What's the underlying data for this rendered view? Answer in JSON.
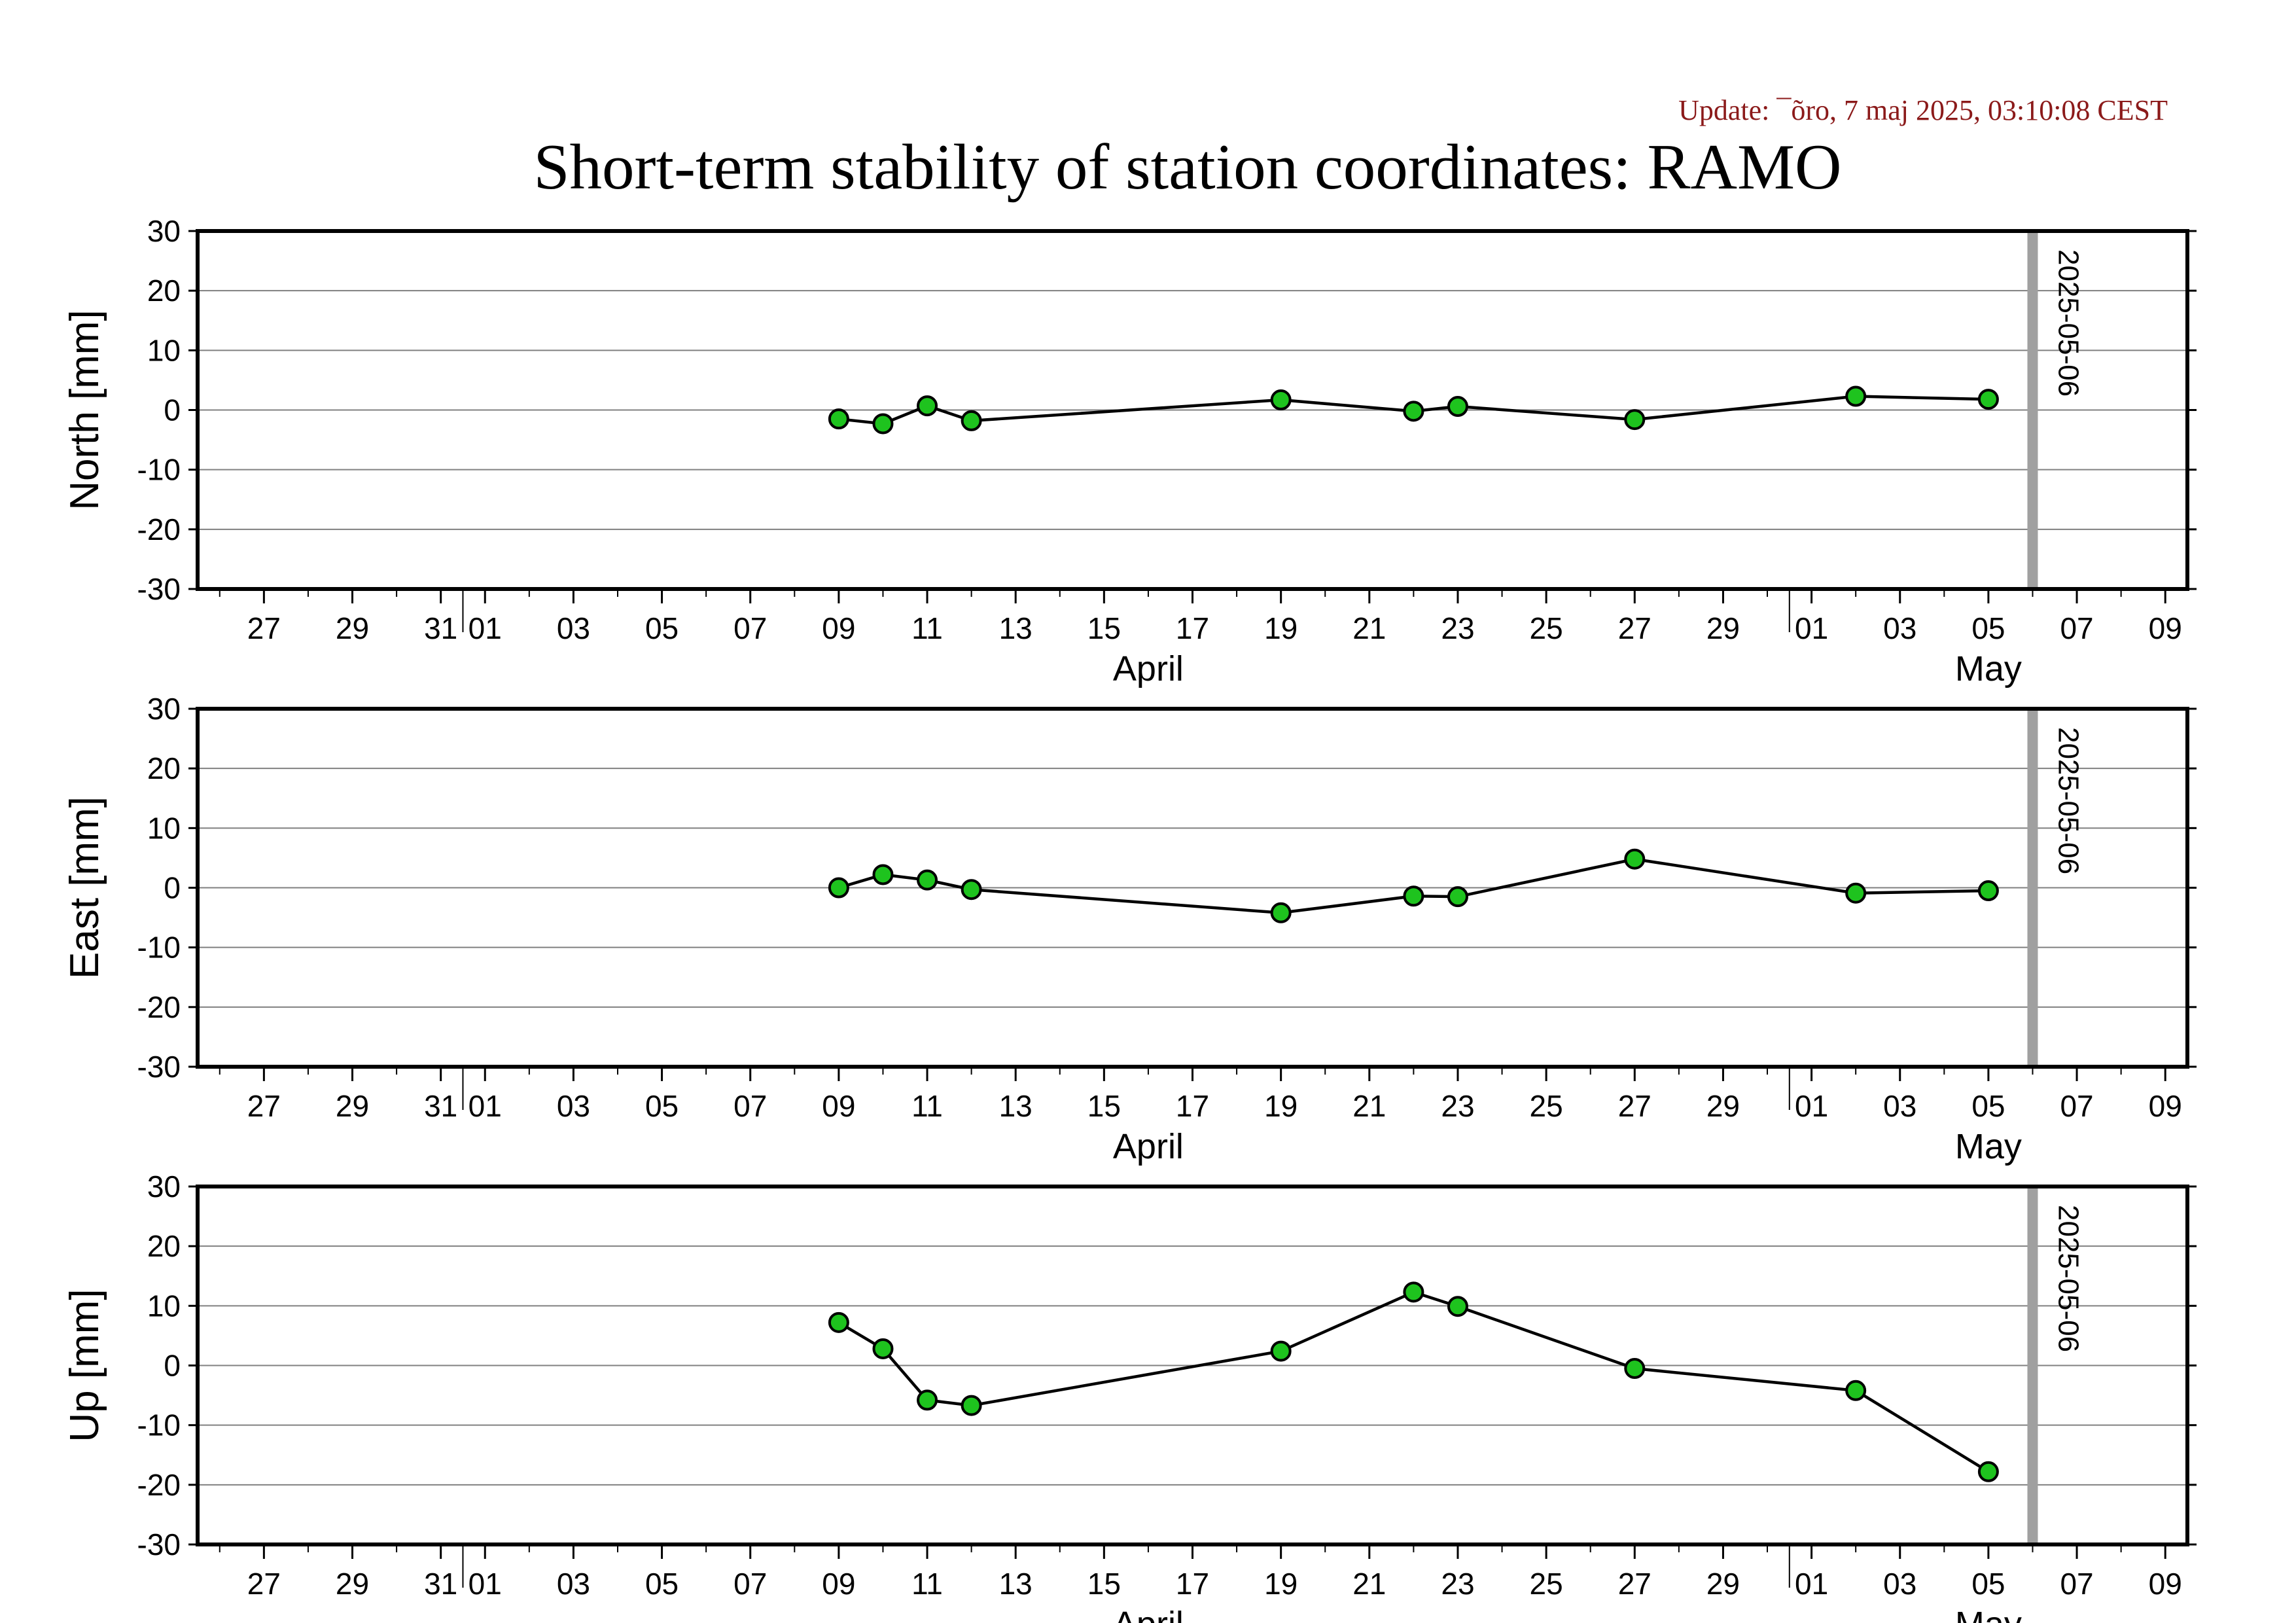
{
  "update_text": "Update: ¯õro, 7 maj 2025, 03:10:08 CEST",
  "title": "Short-term stability of station coordinates: RAMO",
  "colors": {
    "update_text": "#8b1a1a",
    "marker_fill": "#1ec31e",
    "marker_stroke": "#000000",
    "line": "#000000",
    "grid": "#808080",
    "marker_line": "#a0a0a0"
  },
  "chart_data": [
    {
      "type": "line",
      "ylabel": "North [mm]",
      "ylim": [
        -30,
        30
      ],
      "yticks": [
        30,
        20,
        10,
        0,
        -10,
        -20,
        -30
      ],
      "grid": "horizontal",
      "x": [
        "2025-04-09",
        "2025-04-10",
        "2025-04-11",
        "2025-04-12",
        "2025-04-19",
        "2025-04-22",
        "2025-04-23",
        "2025-04-27",
        "2025-05-02",
        "2025-05-05"
      ],
      "values": [
        -1.5,
        -2.3,
        0.7,
        -1.8,
        1.7,
        -0.2,
        0.6,
        -1.6,
        2.3,
        1.8
      ]
    },
    {
      "type": "line",
      "ylabel": "East [mm]",
      "ylim": [
        -30,
        30
      ],
      "yticks": [
        30,
        20,
        10,
        0,
        -10,
        -20,
        -30
      ],
      "grid": "horizontal",
      "x": [
        "2025-04-09",
        "2025-04-10",
        "2025-04-11",
        "2025-04-12",
        "2025-04-19",
        "2025-04-22",
        "2025-04-23",
        "2025-04-27",
        "2025-05-02",
        "2025-05-05"
      ],
      "values": [
        0.0,
        2.2,
        1.3,
        -0.3,
        -4.2,
        -1.4,
        -1.5,
        4.8,
        -0.9,
        -0.5
      ]
    },
    {
      "type": "line",
      "ylabel": "Up [mm]",
      "ylim": [
        -30,
        30
      ],
      "yticks": [
        30,
        20,
        10,
        0,
        -10,
        -20,
        -30
      ],
      "grid": "horizontal",
      "x": [
        "2025-04-09",
        "2025-04-10",
        "2025-04-11",
        "2025-04-12",
        "2025-04-19",
        "2025-04-22",
        "2025-04-23",
        "2025-04-27",
        "2025-05-02",
        "2025-05-05"
      ],
      "values": [
        7.2,
        2.8,
        -5.8,
        -6.7,
        2.4,
        12.3,
        9.9,
        -0.5,
        -4.2,
        -17.8
      ]
    }
  ],
  "x_axis": {
    "range": [
      "2025-03-26",
      "2025-05-10"
    ],
    "tick_labels": [
      {
        "date": "2025-03-27",
        "label": "27"
      },
      {
        "date": "2025-03-29",
        "label": "29"
      },
      {
        "date": "2025-03-31",
        "label": "31"
      },
      {
        "date": "2025-04-01",
        "label": "01"
      },
      {
        "date": "2025-04-03",
        "label": "03"
      },
      {
        "date": "2025-04-05",
        "label": "05"
      },
      {
        "date": "2025-04-07",
        "label": "07"
      },
      {
        "date": "2025-04-09",
        "label": "09"
      },
      {
        "date": "2025-04-11",
        "label": "11"
      },
      {
        "date": "2025-04-13",
        "label": "13"
      },
      {
        "date": "2025-04-15",
        "label": "15"
      },
      {
        "date": "2025-04-17",
        "label": "17"
      },
      {
        "date": "2025-04-19",
        "label": "19"
      },
      {
        "date": "2025-04-21",
        "label": "21"
      },
      {
        "date": "2025-04-23",
        "label": "23"
      },
      {
        "date": "2025-04-25",
        "label": "25"
      },
      {
        "date": "2025-04-27",
        "label": "27"
      },
      {
        "date": "2025-04-29",
        "label": "29"
      },
      {
        "date": "2025-05-01",
        "label": "01"
      },
      {
        "date": "2025-05-03",
        "label": "03"
      },
      {
        "date": "2025-05-05",
        "label": "05"
      },
      {
        "date": "2025-05-07",
        "label": "07"
      },
      {
        "date": "2025-05-09",
        "label": "09"
      }
    ],
    "month_labels": [
      {
        "date": "2025-04-16",
        "label": "April"
      },
      {
        "date": "2025-05-05",
        "label": "May"
      }
    ],
    "month_boundaries": [
      "2025-04-01",
      "2025-05-01"
    ]
  },
  "vertical_marker": {
    "date": "2025-05-06",
    "label": "2025-05-06"
  }
}
